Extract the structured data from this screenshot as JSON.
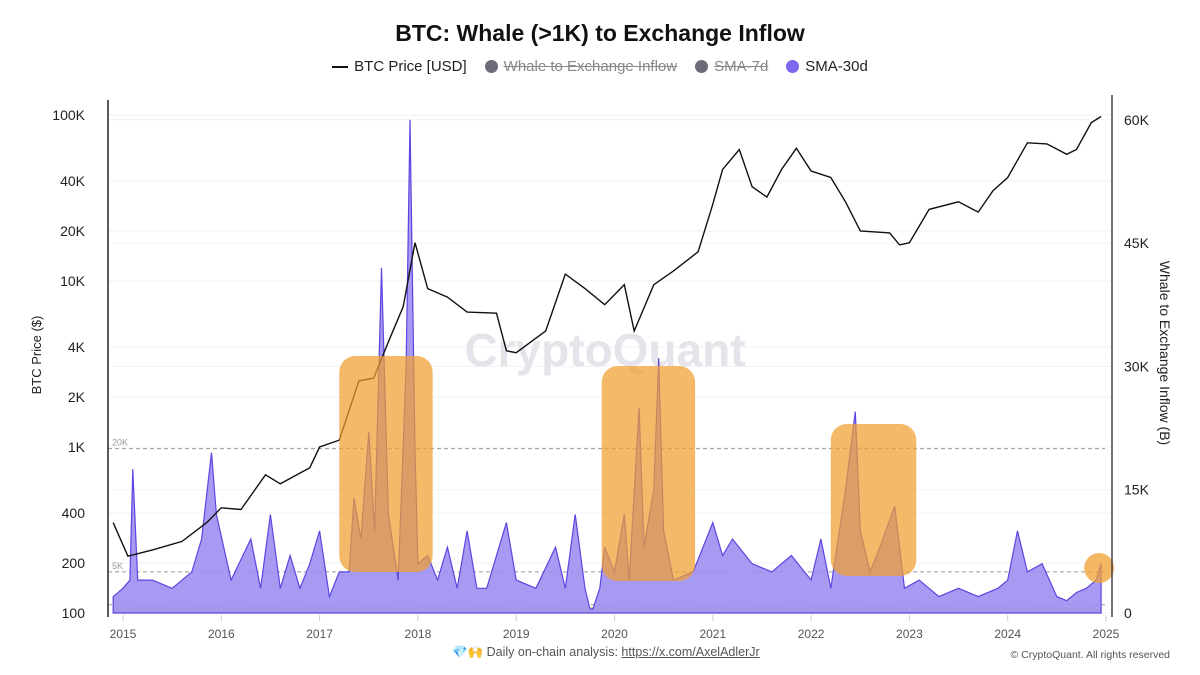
{
  "chart_data": {
    "type": "line",
    "title": "BTC: Whale (>1K) to Exchange Inflow",
    "legend": [
      {
        "name": "BTC Price [USD]",
        "color": "#111111",
        "enabled": true,
        "marker": "line"
      },
      {
        "name": "Whale to Exchange Inflow",
        "color": "#6b6b7b",
        "enabled": false,
        "marker": "dot"
      },
      {
        "name": "SMA-7d",
        "color": "#6b6b7b",
        "enabled": false,
        "marker": "dot"
      },
      {
        "name": "SMA-30d",
        "color": "#7b68ee",
        "enabled": true,
        "marker": "dot"
      }
    ],
    "legend_position": "top",
    "xlabel": "",
    "x_ticks": [
      "2015",
      "2016",
      "2017",
      "2018",
      "2019",
      "2020",
      "2021",
      "2022",
      "2023",
      "2024",
      "2025"
    ],
    "y_left": {
      "label": "BTC Price ($)",
      "scale": "log",
      "range": [
        100,
        130000
      ],
      "ticks": [
        "100",
        "200",
        "400",
        "1K",
        "2K",
        "4K",
        "10K",
        "20K",
        "40K",
        "100K"
      ],
      "tick_values": [
        100,
        200,
        400,
        1000,
        2000,
        4000,
        10000,
        20000,
        40000,
        100000
      ]
    },
    "y_right": {
      "label": "Whale to Exchange Inflow (B)",
      "scale": "linear",
      "range": [
        0,
        60500
      ],
      "ticks": [
        "0",
        "15K",
        "30K",
        "45K",
        "60K"
      ],
      "tick_values": [
        0,
        15000,
        30000,
        45000,
        60000
      ]
    },
    "reference_lines": [
      {
        "label": "20K",
        "value": 20000
      },
      {
        "label": "5K",
        "value": 5000
      },
      {
        "label": "1K",
        "value": 1000
      }
    ],
    "watermark": "CryptoQuant",
    "series": [
      {
        "name": "BTC Price [USD]",
        "axis": "left",
        "color": "#111111",
        "x": [
          2014.9,
          2015.05,
          2015.3,
          2015.6,
          2015.85,
          2016.0,
          2016.2,
          2016.45,
          2016.6,
          2016.9,
          2017.0,
          2017.2,
          2017.4,
          2017.55,
          2017.7,
          2017.85,
          2017.97,
          2018.1,
          2018.3,
          2018.5,
          2018.8,
          2018.9,
          2019.0,
          2019.3,
          2019.5,
          2019.7,
          2019.9,
          2020.1,
          2020.2,
          2020.4,
          2020.6,
          2020.85,
          2021.0,
          2021.1,
          2021.27,
          2021.4,
          2021.55,
          2021.7,
          2021.85,
          2022.0,
          2022.2,
          2022.35,
          2022.5,
          2022.8,
          2022.9,
          2023.0,
          2023.2,
          2023.5,
          2023.7,
          2023.85,
          2024.0,
          2024.2,
          2024.4,
          2024.6,
          2024.7,
          2024.85,
          2024.95
        ],
        "y": [
          350,
          220,
          240,
          270,
          350,
          430,
          420,
          680,
          600,
          750,
          1000,
          1100,
          2500,
          2600,
          4300,
          7000,
          17000,
          9000,
          8000,
          6500,
          6400,
          3800,
          3700,
          5000,
          11000,
          9000,
          7200,
          9500,
          5000,
          9500,
          11500,
          15000,
          29000,
          47000,
          62000,
          37000,
          32000,
          47000,
          63000,
          46000,
          42000,
          30000,
          20000,
          19500,
          16500,
          17000,
          27000,
          30000,
          26000,
          35000,
          42000,
          68000,
          67000,
          58000,
          62000,
          90000,
          98000
        ]
      },
      {
        "name": "SMA-30d",
        "axis": "right",
        "color": "#7b68ee",
        "x": [
          2014.9,
          2015.0,
          2015.07,
          2015.1,
          2015.15,
          2015.3,
          2015.5,
          2015.7,
          2015.8,
          2015.9,
          2015.95,
          2016.1,
          2016.3,
          2016.4,
          2016.5,
          2016.6,
          2016.7,
          2016.8,
          2016.9,
          2017.0,
          2017.1,
          2017.2,
          2017.3,
          2017.35,
          2017.42,
          2017.5,
          2017.56,
          2017.63,
          2017.7,
          2017.8,
          2017.88,
          2017.92,
          2017.97,
          2018.0,
          2018.1,
          2018.2,
          2018.3,
          2018.4,
          2018.5,
          2018.6,
          2018.7,
          2018.9,
          2019.0,
          2019.2,
          2019.4,
          2019.5,
          2019.6,
          2019.7,
          2019.75,
          2019.78,
          2019.85,
          2019.9,
          2020.0,
          2020.1,
          2020.15,
          2020.25,
          2020.3,
          2020.4,
          2020.45,
          2020.5,
          2020.6,
          2020.8,
          2020.9,
          2021.0,
          2021.1,
          2021.2,
          2021.4,
          2021.6,
          2021.8,
          2022.0,
          2022.1,
          2022.2,
          2022.35,
          2022.45,
          2022.5,
          2022.6,
          2022.7,
          2022.85,
          2022.95,
          2023.1,
          2023.3,
          2023.5,
          2023.7,
          2023.9,
          2024.0,
          2024.1,
          2024.2,
          2024.35,
          2024.5,
          2024.6,
          2024.7,
          2024.8,
          2024.9,
          2024.95
        ],
        "y": [
          2000,
          3000,
          4000,
          17500,
          4000,
          4000,
          3000,
          5000,
          9000,
          19500,
          12000,
          4000,
          9000,
          3000,
          12000,
          3000,
          7000,
          3000,
          6000,
          10000,
          2000,
          5000,
          5000,
          14000,
          9000,
          22000,
          10000,
          42000,
          12000,
          4000,
          30000,
          60000,
          20000,
          6000,
          7000,
          4000,
          8000,
          3000,
          10000,
          3000,
          3000,
          11000,
          4000,
          3000,
          8000,
          3000,
          12000,
          3000,
          500,
          500,
          3000,
          8000,
          5000,
          12000,
          4000,
          25000,
          8000,
          15000,
          31000,
          10000,
          4000,
          5000,
          8000,
          11000,
          7000,
          9000,
          6000,
          5000,
          7000,
          4000,
          9000,
          3000,
          15000,
          24500,
          10000,
          5000,
          8000,
          13000,
          3000,
          4000,
          2000,
          3000,
          2000,
          3000,
          4000,
          10000,
          5000,
          6000,
          2000,
          1500,
          2500,
          3000,
          4000,
          6000
        ]
      }
    ],
    "highlights": [
      {
        "from": 2017.2,
        "to": 2018.15,
        "kind": "box"
      },
      {
        "from": 2019.87,
        "to": 2020.82,
        "kind": "box"
      },
      {
        "from": 2022.2,
        "to": 2023.07,
        "kind": "box"
      },
      {
        "at": 2024.93,
        "kind": "circle"
      }
    ]
  },
  "footer": {
    "icons": "💎🙌",
    "analysis_label": "Daily on-chain analysis:",
    "analysis_link": "https://x.com/AxelAdlerJr",
    "copyright": "© CryptoQuant. All rights reserved"
  }
}
